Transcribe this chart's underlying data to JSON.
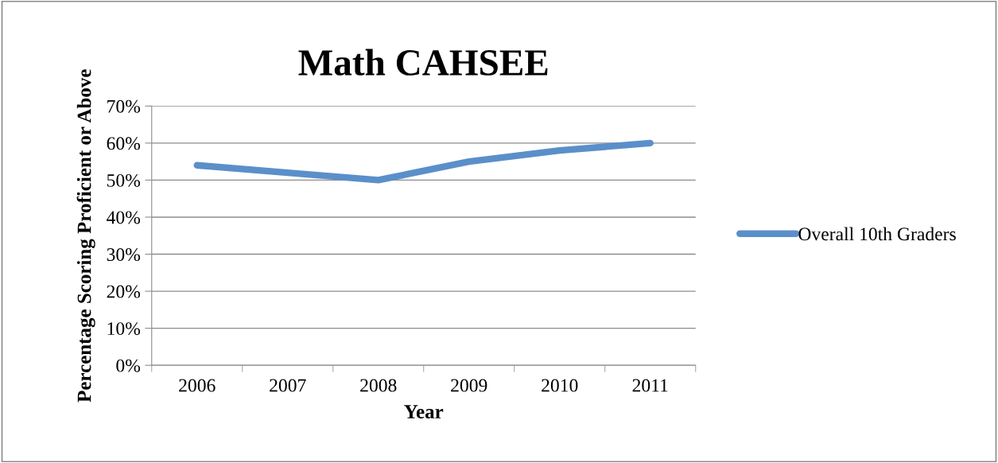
{
  "chart_data": {
    "type": "line",
    "title": "Math CAHSEE",
    "xlabel": "Year",
    "ylabel": "Percentage Scoring Proficient or Above",
    "categories": [
      "2006",
      "2007",
      "2008",
      "2009",
      "2010",
      "2011"
    ],
    "series": [
      {
        "name": "Overall 10th Graders",
        "color": "#5b8fc9",
        "values": [
          54,
          52,
          50,
          55,
          58,
          60
        ]
      }
    ],
    "ylim": [
      0,
      70
    ],
    "yticks": [
      {
        "value": 0,
        "label": "0%"
      },
      {
        "value": 10,
        "label": "10%"
      },
      {
        "value": 20,
        "label": "20%"
      },
      {
        "value": 30,
        "label": "30%"
      },
      {
        "value": 40,
        "label": "40%"
      },
      {
        "value": 50,
        "label": "50%"
      },
      {
        "value": 60,
        "label": "60%"
      },
      {
        "value": 70,
        "label": "70%"
      }
    ],
    "grid": "y",
    "legend": "right",
    "marker": "none",
    "line_style": "solid"
  }
}
